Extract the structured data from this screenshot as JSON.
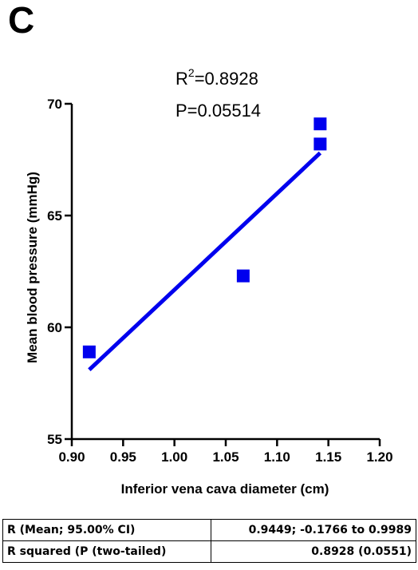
{
  "panel_letter": "C",
  "annotation": {
    "r2_base": "R",
    "r2_sup": "2",
    "r2_value": "=0.8928",
    "p_text": "P=0.05514"
  },
  "chart_data": {
    "type": "scatter",
    "xlabel": "Inferior vena cava diameter (cm)",
    "ylabel": "Mean blood pressure (mmHg)",
    "xlim": [
      0.9,
      1.2
    ],
    "ylim": [
      55,
      70
    ],
    "xticks": [
      0.9,
      0.95,
      1.0,
      1.05,
      1.1,
      1.15,
      1.2
    ],
    "xtick_labels": [
      "0.90",
      "0.95",
      "1.00",
      "1.05",
      "1.10",
      "1.15",
      "1.20"
    ],
    "yticks": [
      55,
      60,
      65,
      70
    ],
    "ytick_labels": [
      "55",
      "60",
      "65",
      "70"
    ],
    "points": [
      {
        "x": 0.917,
        "y": 58.9
      },
      {
        "x": 1.067,
        "y": 62.3
      },
      {
        "x": 1.142,
        "y": 68.2
      },
      {
        "x": 1.142,
        "y": 69.1
      }
    ],
    "fit_line": {
      "x": [
        0.917,
        1.142
      ],
      "y": [
        58.1,
        67.8
      ]
    },
    "marker_color": "#0000ee",
    "line_color": "#0000ee",
    "grid": false,
    "legend": "none"
  },
  "stats_table": [
    {
      "label": "R (Mean; 95.00% CI)",
      "value": "0.9449; -0.1766 to 0.9989"
    },
    {
      "label": "R squared (P (two-tailed)",
      "value": "0.8928 (0.0551)"
    }
  ]
}
